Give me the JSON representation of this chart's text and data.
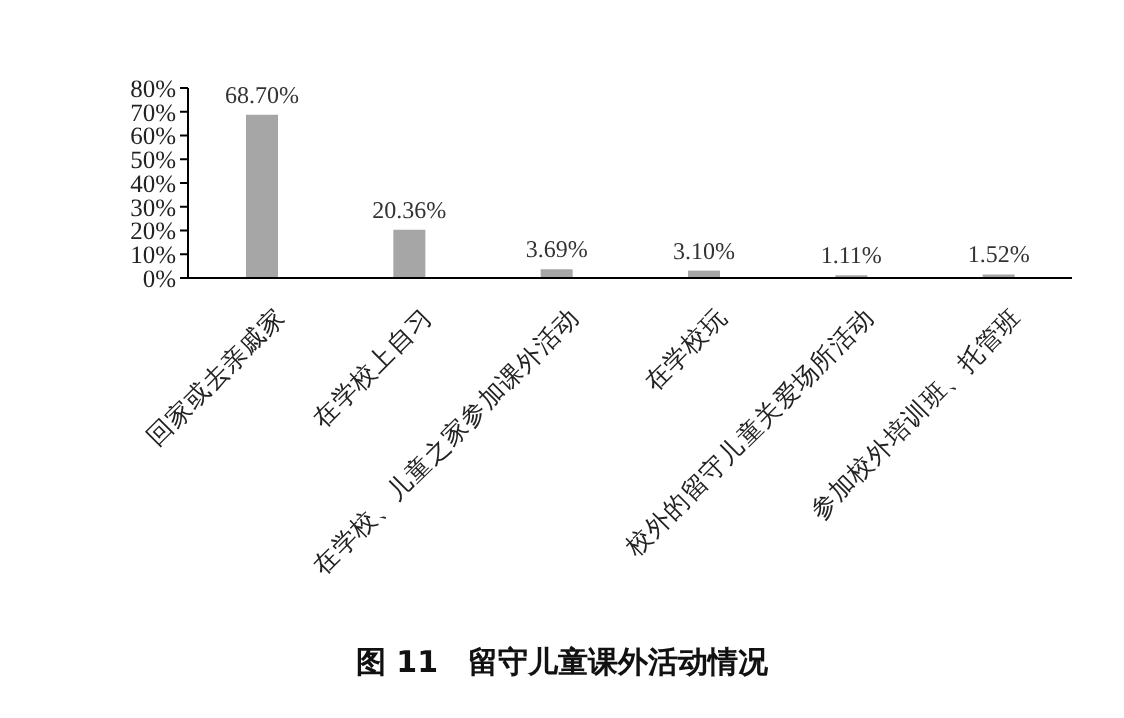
{
  "chart_data": {
    "type": "bar",
    "title": "图 11　留守儿童课外活动情况",
    "categories": [
      "回家或去亲戚家",
      "在学校上自习",
      "在学校、儿童之家参加课外活动",
      "在学校玩",
      "校外的留守儿童关爱场所活动",
      "参加校外培训班、托管班"
    ],
    "values": [
      68.7,
      20.36,
      3.69,
      3.1,
      1.11,
      1.52
    ],
    "value_labels": [
      "68.70%",
      "20.36%",
      "3.69%",
      "3.10%",
      "1.11%",
      "1.52%"
    ],
    "color": "#a6a6a6",
    "ylim": [
      0,
      80
    ],
    "yticks": [
      {
        "value": 0,
        "label": "0%"
      },
      {
        "value": 10,
        "label": "10%"
      },
      {
        "value": 20,
        "label": "20%"
      },
      {
        "value": 30,
        "label": "30%"
      },
      {
        "value": 40,
        "label": "40%"
      },
      {
        "value": 50,
        "label": "50%"
      },
      {
        "value": 60,
        "label": "60%"
      },
      {
        "value": 70,
        "label": "70%"
      },
      {
        "value": 80,
        "label": "80%"
      }
    ],
    "grid": false,
    "legend": false
  }
}
